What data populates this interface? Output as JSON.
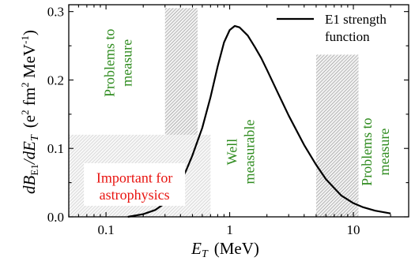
{
  "chart_data": {
    "type": "line",
    "title": "",
    "xlabel": {
      "main": "E",
      "sub": "T",
      "unit": "(MeV)"
    },
    "ylabel": {
      "d1": "dB",
      "sub1": "E1",
      "mid": "/dE",
      "sub2": "T",
      "unit1": "(e",
      "sup1": "2",
      "unit2": " fm",
      "sup2": "2",
      "unit3": " MeV",
      "sup3": "-1",
      "unit4": ")"
    },
    "x_scale": "log",
    "xlim": [
      0.05,
      28
    ],
    "ylim": [
      0,
      0.31
    ],
    "x_ticks": [
      {
        "value": 0.1,
        "label": "0.1"
      },
      {
        "value": 1,
        "label": "1"
      },
      {
        "value": 10,
        "label": "10"
      }
    ],
    "y_ticks": [
      {
        "value": 0.0,
        "label": "0.0"
      },
      {
        "value": 0.1,
        "label": "0.1"
      },
      {
        "value": 0.2,
        "label": "0.2"
      },
      {
        "value": 0.3,
        "label": "0.3"
      }
    ],
    "series": [
      {
        "name": "E1 strength function",
        "color": "#000000",
        "points": [
          [
            0.15,
            0.0
          ],
          [
            0.2,
            0.004
          ],
          [
            0.25,
            0.01
          ],
          [
            0.3,
            0.02
          ],
          [
            0.35,
            0.034
          ],
          [
            0.4,
            0.05
          ],
          [
            0.45,
            0.07
          ],
          [
            0.5,
            0.09
          ],
          [
            0.6,
            0.13
          ],
          [
            0.7,
            0.175
          ],
          [
            0.8,
            0.22
          ],
          [
            0.9,
            0.255
          ],
          [
            1.0,
            0.273
          ],
          [
            1.1,
            0.279
          ],
          [
            1.2,
            0.277
          ],
          [
            1.4,
            0.265
          ],
          [
            1.6,
            0.248
          ],
          [
            1.8,
            0.232
          ],
          [
            2.0,
            0.215
          ],
          [
            2.5,
            0.178
          ],
          [
            3.0,
            0.148
          ],
          [
            4.0,
            0.105
          ],
          [
            5.0,
            0.076
          ],
          [
            6.0,
            0.055
          ],
          [
            7.0,
            0.042
          ],
          [
            8.0,
            0.031
          ],
          [
            10.0,
            0.02
          ],
          [
            12.0,
            0.014
          ],
          [
            15.0,
            0.009
          ],
          [
            20.0,
            0.005
          ]
        ]
      }
    ],
    "regions": [
      {
        "x": [
          0.3,
          0.55
        ],
        "y": [
          0,
          0.305
        ],
        "pattern": "hatch-dense"
      },
      {
        "x": [
          0.05,
          0.7
        ],
        "y": [
          0,
          0.12
        ],
        "pattern": "hatch-light"
      },
      {
        "x": [
          5.0,
          11.0
        ],
        "y": [
          0,
          0.237
        ],
        "pattern": "hatch-dense"
      }
    ],
    "annotations": [
      {
        "text": [
          "Problems to",
          "measure"
        ],
        "x": 0.125,
        "y": 0.225,
        "rotate": -90,
        "color": "#2e8b1e"
      },
      {
        "text": [
          "Well",
          "measurable"
        ],
        "x": 1.22,
        "y": 0.095,
        "rotate": -90,
        "color": "#2e8b1e"
      },
      {
        "text": [
          "Problems to",
          "measure"
        ],
        "x": 15.0,
        "y": 0.095,
        "rotate": -90,
        "color": "#2e8b1e"
      },
      {
        "text": [
          "Important for",
          "astrophysics"
        ],
        "x": 0.17,
        "y": 0.045,
        "rotate": 0,
        "color": "#e8130f",
        "boxed": true
      }
    ],
    "legend": {
      "placement": "top-right",
      "text": [
        "E1 strength",
        "function"
      ]
    },
    "grid": false
  }
}
